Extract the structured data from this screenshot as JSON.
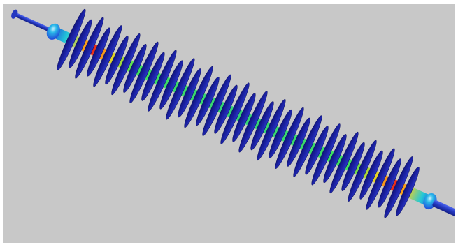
{
  "scene": {
    "background_color": "#c8c8c8",
    "frame_color": "#ffffff",
    "object": "composite-insulator",
    "shed_count": 38,
    "colors": {
      "shed": "#1a1f8f",
      "shed_highlight": "#2a34c8",
      "end_fitting": "#2438c0",
      "core_low": "#1f3fd8",
      "core_mid": "#22d2c8",
      "core_green": "#3fe060",
      "core_high": "#ffd21a",
      "core_peak": "#e8221a"
    }
  }
}
